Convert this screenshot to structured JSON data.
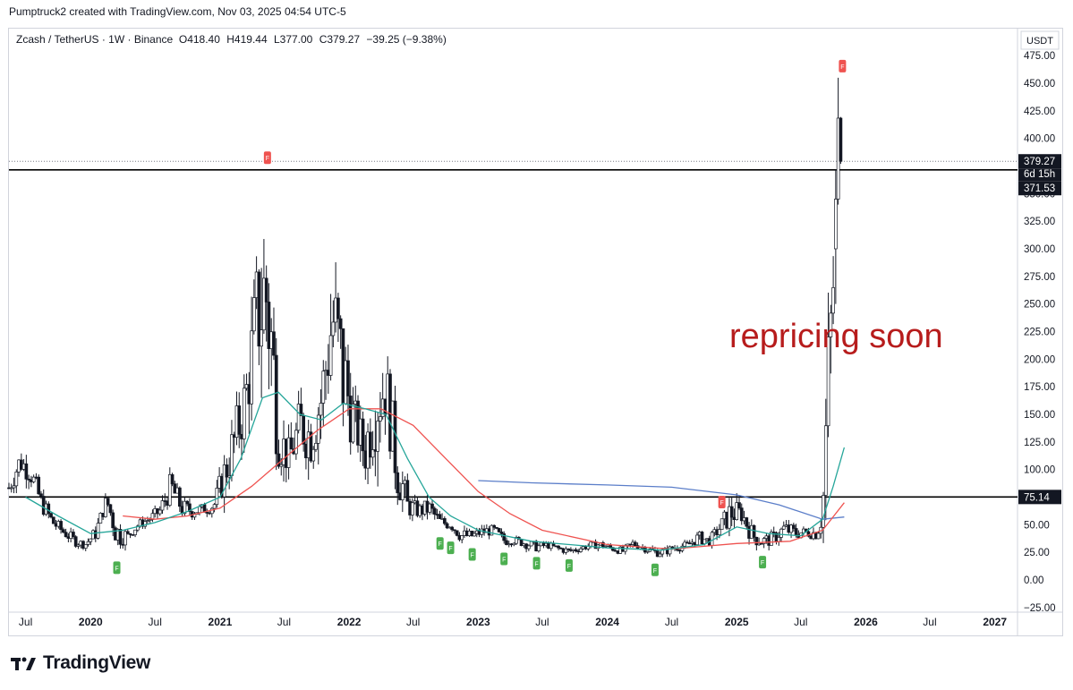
{
  "header": {
    "credit": "Pumptruck2 created with TradingView.com, Nov 03, 2025 04:54 UTC-5"
  },
  "legend": {
    "symbol": "Zcash / TetherUS · 1W · Binance",
    "open_label": "O",
    "open": "418.40",
    "high_label": "H",
    "high": "419.44",
    "low_label": "L",
    "low": "377.00",
    "close_label": "C",
    "close": "379.27",
    "change": "−39.25 (−9.38%)"
  },
  "price_scale": {
    "currency": "USDT",
    "last_price_tag": "379.27",
    "countdown_tag": "6d 15h",
    "level_high_tag": "371.53",
    "level_low_tag": "75.14"
  },
  "annotation": {
    "text": "repricing soon",
    "color": "#b71c1c"
  },
  "footer": {
    "brand": "TradingView"
  },
  "colors": {
    "up": "#ffffff",
    "down": "#131722",
    "ma_green": "#26a69a",
    "ma_red": "#ef5350",
    "ma_blue": "#5b7ec9",
    "flag_red": "#ef5350",
    "flag_green": "#4caf50"
  },
  "chart_data": {
    "type": "candlestick",
    "ylim": [
      -25,
      475
    ],
    "y_ticks": [
      -25,
      0,
      25,
      50,
      75,
      100,
      125,
      150,
      175,
      200,
      225,
      250,
      275,
      300,
      325,
      350,
      400,
      425,
      450,
      475
    ],
    "y_tick_labels": [
      "−25.00",
      "0.00",
      "25.00",
      "50.00",
      "75.00",
      "100.00",
      "125.00",
      "150.00",
      "175.00",
      "200.00",
      "225.00",
      "250.00",
      "275.00",
      "300.00",
      "325.00",
      "350.00",
      "400.00",
      "425.00",
      "450.00",
      "475.00"
    ],
    "x_ticks": [
      "2019-07",
      "2020-01",
      "2020-07",
      "2021-01",
      "2021-07",
      "2022-01",
      "2022-07",
      "2023-01",
      "2023-07",
      "2024-01",
      "2024-07",
      "2025-01",
      "2025-07",
      "2026-01",
      "2026-07",
      "2027-01"
    ],
    "x_tick_labels": [
      "Jul",
      "2020",
      "Jul",
      "2021",
      "Jul",
      "2022",
      "Jul",
      "2023",
      "Jul",
      "2024",
      "Jul",
      "2025",
      "Jul",
      "2026",
      "Jul",
      "2027"
    ],
    "xlim": [
      "2019-05-15",
      "2027-03-01"
    ],
    "horizontal_levels": [
      371.53,
      75.14
    ],
    "last_price": 379.27,
    "weekly_ohlc_keyframes": [
      [
        "2019-05-15",
        72,
        95
      ],
      [
        "2019-06-15",
        95,
        120
      ],
      [
        "2019-07-15",
        85,
        110
      ],
      [
        "2019-08-15",
        60,
        80
      ],
      [
        "2019-09-15",
        45,
        60
      ],
      [
        "2019-10-15",
        38,
        50
      ],
      [
        "2019-11-15",
        30,
        42
      ],
      [
        "2019-12-15",
        28,
        35
      ],
      [
        "2020-01-15",
        35,
        50
      ],
      [
        "2020-02-15",
        65,
        80
      ],
      [
        "2020-03-15",
        25,
        60
      ],
      [
        "2020-04-15",
        35,
        45
      ],
      [
        "2020-05-15",
        45,
        55
      ],
      [
        "2020-06-15",
        50,
        60
      ],
      [
        "2020-07-15",
        55,
        70
      ],
      [
        "2020-08-15",
        70,
        100
      ],
      [
        "2020-09-15",
        55,
        75
      ],
      [
        "2020-10-15",
        55,
        70
      ],
      [
        "2020-11-15",
        58,
        70
      ],
      [
        "2020-12-15",
        60,
        75
      ],
      [
        "2021-01-15",
        75,
        120
      ],
      [
        "2021-02-15",
        100,
        160
      ],
      [
        "2021-03-15",
        130,
        200
      ],
      [
        "2021-04-15",
        180,
        300
      ],
      [
        "2021-05-15",
        150,
        372
      ],
      [
        "2021-06-15",
        100,
        160
      ],
      [
        "2021-07-15",
        90,
        130
      ],
      [
        "2021-08-15",
        110,
        170
      ],
      [
        "2021-09-15",
        100,
        160
      ],
      [
        "2021-10-15",
        130,
        200
      ],
      [
        "2021-11-15",
        170,
        305
      ],
      [
        "2021-12-15",
        120,
        250
      ],
      [
        "2022-01-15",
        120,
        170
      ],
      [
        "2022-02-15",
        90,
        140
      ],
      [
        "2022-03-15",
        110,
        215
      ],
      [
        "2022-04-15",
        140,
        210
      ],
      [
        "2022-05-15",
        70,
        140
      ],
      [
        "2022-06-15",
        55,
        80
      ],
      [
        "2022-07-15",
        55,
        70
      ],
      [
        "2022-08-15",
        55,
        75
      ],
      [
        "2022-09-15",
        45,
        60
      ],
      [
        "2022-10-15",
        45,
        55
      ],
      [
        "2022-11-15",
        32,
        48
      ],
      [
        "2022-12-15",
        35,
        45
      ],
      [
        "2023-01-15",
        38,
        50
      ],
      [
        "2023-02-15",
        40,
        50
      ],
      [
        "2023-03-15",
        30,
        42
      ],
      [
        "2023-04-15",
        32,
        40
      ],
      [
        "2023-05-15",
        28,
        38
      ],
      [
        "2023-06-15",
        25,
        35
      ],
      [
        "2023-07-15",
        28,
        35
      ],
      [
        "2023-08-15",
        25,
        32
      ],
      [
        "2023-09-15",
        22,
        30
      ],
      [
        "2023-10-15",
        25,
        32
      ],
      [
        "2023-11-15",
        28,
        35
      ],
      [
        "2023-12-15",
        28,
        36
      ],
      [
        "2024-01-15",
        25,
        32
      ],
      [
        "2024-02-15",
        22,
        30
      ],
      [
        "2024-03-15",
        28,
        38
      ],
      [
        "2024-04-15",
        25,
        33
      ],
      [
        "2024-05-15",
        20,
        30
      ],
      [
        "2024-06-15",
        22,
        30
      ],
      [
        "2024-07-15",
        25,
        35
      ],
      [
        "2024-08-15",
        28,
        35
      ],
      [
        "2024-09-15",
        32,
        45
      ],
      [
        "2024-10-15",
        30,
        40
      ],
      [
        "2024-11-15",
        40,
        55
      ],
      [
        "2024-12-15",
        45,
        77
      ],
      [
        "2025-01-15",
        50,
        70
      ],
      [
        "2025-02-15",
        30,
        50
      ],
      [
        "2025-03-15",
        28,
        42
      ],
      [
        "2025-04-15",
        30,
        45
      ],
      [
        "2025-05-15",
        38,
        55
      ],
      [
        "2025-06-15",
        35,
        50
      ],
      [
        "2025-07-15",
        38,
        48
      ],
      [
        "2025-08-15",
        35,
        50
      ],
      [
        "2025-09-01",
        45,
        75
      ],
      [
        "2025-09-15",
        110,
        235
      ],
      [
        "2025-09-29",
        220,
        300
      ],
      [
        "2025-10-13",
        250,
        372
      ],
      [
        "2025-10-20",
        340,
        455
      ],
      [
        "2025-10-27",
        377,
        419.44
      ]
    ],
    "ma_green_keyframes": [
      [
        "2019-07-01",
        75
      ],
      [
        "2019-10-01",
        58
      ],
      [
        "2020-01-01",
        42
      ],
      [
        "2020-04-01",
        45
      ],
      [
        "2020-07-01",
        52
      ],
      [
        "2020-10-01",
        62
      ],
      [
        "2021-01-01",
        75
      ],
      [
        "2021-03-01",
        110
      ],
      [
        "2021-05-01",
        165
      ],
      [
        "2021-06-15",
        170
      ],
      [
        "2021-08-15",
        150
      ],
      [
        "2021-10-15",
        145
      ],
      [
        "2021-12-15",
        160
      ],
      [
        "2022-02-15",
        155
      ],
      [
        "2022-04-15",
        150
      ],
      [
        "2022-06-15",
        110
      ],
      [
        "2022-08-15",
        75
      ],
      [
        "2022-10-15",
        58
      ],
      [
        "2023-01-01",
        45
      ],
      [
        "2023-06-01",
        35
      ],
      [
        "2024-01-01",
        29
      ],
      [
        "2024-06-01",
        27
      ],
      [
        "2024-10-01",
        32
      ],
      [
        "2025-01-01",
        48
      ],
      [
        "2025-04-01",
        42
      ],
      [
        "2025-07-01",
        40
      ],
      [
        "2025-09-01",
        55
      ],
      [
        "2025-10-01",
        85
      ],
      [
        "2025-11-01",
        120
      ]
    ],
    "ma_red_keyframes": [
      [
        "2020-04-01",
        58
      ],
      [
        "2020-07-01",
        55
      ],
      [
        "2020-10-01",
        58
      ],
      [
        "2021-01-01",
        65
      ],
      [
        "2021-04-01",
        85
      ],
      [
        "2021-07-01",
        110
      ],
      [
        "2021-10-01",
        135
      ],
      [
        "2022-01-01",
        155
      ],
      [
        "2022-04-01",
        155
      ],
      [
        "2022-07-01",
        140
      ],
      [
        "2022-10-01",
        110
      ],
      [
        "2023-01-01",
        80
      ],
      [
        "2023-04-01",
        60
      ],
      [
        "2023-07-01",
        45
      ],
      [
        "2024-01-01",
        32
      ],
      [
        "2024-07-01",
        28
      ],
      [
        "2025-01-01",
        33
      ],
      [
        "2025-06-01",
        35
      ],
      [
        "2025-09-01",
        45
      ],
      [
        "2025-11-01",
        70
      ]
    ],
    "ma_blue_keyframes": [
      [
        "2023-01-01",
        90
      ],
      [
        "2023-06-01",
        88
      ],
      [
        "2024-01-01",
        86
      ],
      [
        "2024-07-01",
        84
      ],
      [
        "2025-01-01",
        77
      ],
      [
        "2025-05-01",
        68
      ],
      [
        "2025-09-01",
        55
      ],
      [
        "2025-11-01",
        57
      ]
    ],
    "flags": [
      {
        "date": "2021-05-15",
        "value": 372,
        "color": "red",
        "position": "above"
      },
      {
        "date": "2025-10-27",
        "value": 455,
        "color": "red",
        "position": "above"
      },
      {
        "date": "2024-11-20",
        "value": 60,
        "color": "red",
        "position": "above"
      },
      {
        "date": "2020-03-15",
        "value": 20,
        "color": "green",
        "position": "below"
      },
      {
        "date": "2022-09-15",
        "value": 42,
        "color": "green",
        "position": "below"
      },
      {
        "date": "2022-10-15",
        "value": 38,
        "color": "green",
        "position": "below"
      },
      {
        "date": "2022-12-15",
        "value": 32,
        "color": "green",
        "position": "below"
      },
      {
        "date": "2023-03-15",
        "value": 28,
        "color": "green",
        "position": "below"
      },
      {
        "date": "2023-06-15",
        "value": 24,
        "color": "green",
        "position": "below"
      },
      {
        "date": "2023-09-15",
        "value": 22,
        "color": "green",
        "position": "below"
      },
      {
        "date": "2024-05-15",
        "value": 18,
        "color": "green",
        "position": "below"
      },
      {
        "date": "2025-03-15",
        "value": 25,
        "color": "green",
        "position": "below"
      }
    ]
  }
}
